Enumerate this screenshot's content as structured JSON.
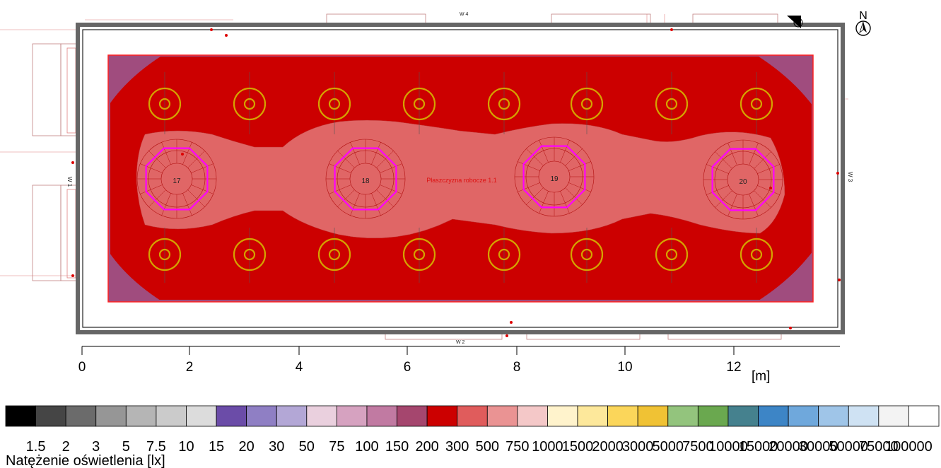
{
  "north_label": "N",
  "plane_label": "Płaszczyzna robocze 1.1",
  "wall_labels": {
    "left": "W 1",
    "right": "W 3",
    "top": "W 4",
    "bottom": "W 2"
  },
  "scale": {
    "ticks": [
      "0",
      "2",
      "4",
      "6",
      "8",
      "10",
      "12"
    ],
    "unit": "[m]"
  },
  "spotlight_labels": [
    "17",
    "18",
    "19",
    "20"
  ],
  "legend": {
    "title": "Natężenie oświetlenia [lx]",
    "values": [
      "1.5",
      "2",
      "3",
      "5",
      "7.5",
      "10",
      "15",
      "20",
      "30",
      "50",
      "75",
      "100",
      "150",
      "200",
      "300",
      "500",
      "750",
      "1000",
      "1500",
      "2000",
      "3000",
      "5000",
      "7500",
      "10000",
      "15000",
      "20000",
      "30000",
      "50000",
      "75000",
      "100000"
    ],
    "colors": [
      "#000000",
      "#454545",
      "#6b6b6b",
      "#969696",
      "#b5b5b5",
      "#cbcbcb",
      "#dcdcdc",
      "#6b4ca8",
      "#8f7fc4",
      "#b3a7d6",
      "#ead0de",
      "#d6a2c0",
      "#c17aa2",
      "#a5466e",
      "#cc0000",
      "#e05c5c",
      "#ea9393",
      "#f4c8c8",
      "#fff3cc",
      "#fde89b",
      "#fbd65a",
      "#f0c234",
      "#93c47d",
      "#6aa84f",
      "#45818e",
      "#3d85c6",
      "#6fa8dc",
      "#9fc5e8",
      "#cfe2f3",
      "#f3f3f3",
      "#ffffff"
    ]
  },
  "colors": {
    "room_wall": "#666666",
    "outer_zone": "#a04c7e",
    "zone_300": "#cc0000",
    "zone_500": "#e06666",
    "luminaire_ring": "#d4a300",
    "spotlight": "#ff00ff"
  }
}
